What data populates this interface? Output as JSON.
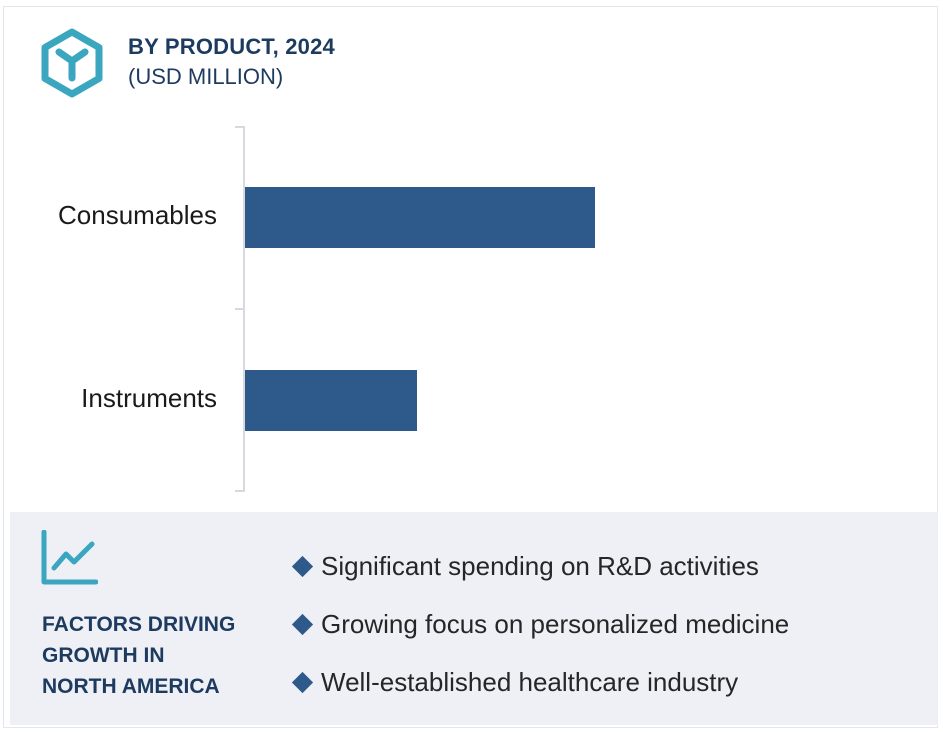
{
  "header": {
    "icon": "box-icon",
    "title": "BY PRODUCT, 2024",
    "subtitle": "(USD MILLION)"
  },
  "colors": {
    "bar": "#2d5a8a",
    "accent": "#3aa6c0",
    "heading": "#1d3a5f",
    "panel_bg": "#eef0f6"
  },
  "chart_data": {
    "type": "bar",
    "orientation": "horizontal",
    "title": "BY PRODUCT, 2024",
    "subtitle": "(USD MILLION)",
    "categories": [
      "Consumables",
      "Instruments"
    ],
    "values": [
      100,
      49
    ],
    "value_note": "relative bar lengths; no axis values printed",
    "xlim": [
      0,
      140
    ],
    "grid": false,
    "legend": "none"
  },
  "factors": {
    "icon": "trend-chart-icon",
    "heading_lines": [
      "FACTORS DRIVING",
      "GROWTH IN",
      "NORTH AMERICA"
    ],
    "items": [
      "Significant spending on R&D activities",
      "Growing focus on personalized medicine",
      "Well-established healthcare industry"
    ]
  }
}
